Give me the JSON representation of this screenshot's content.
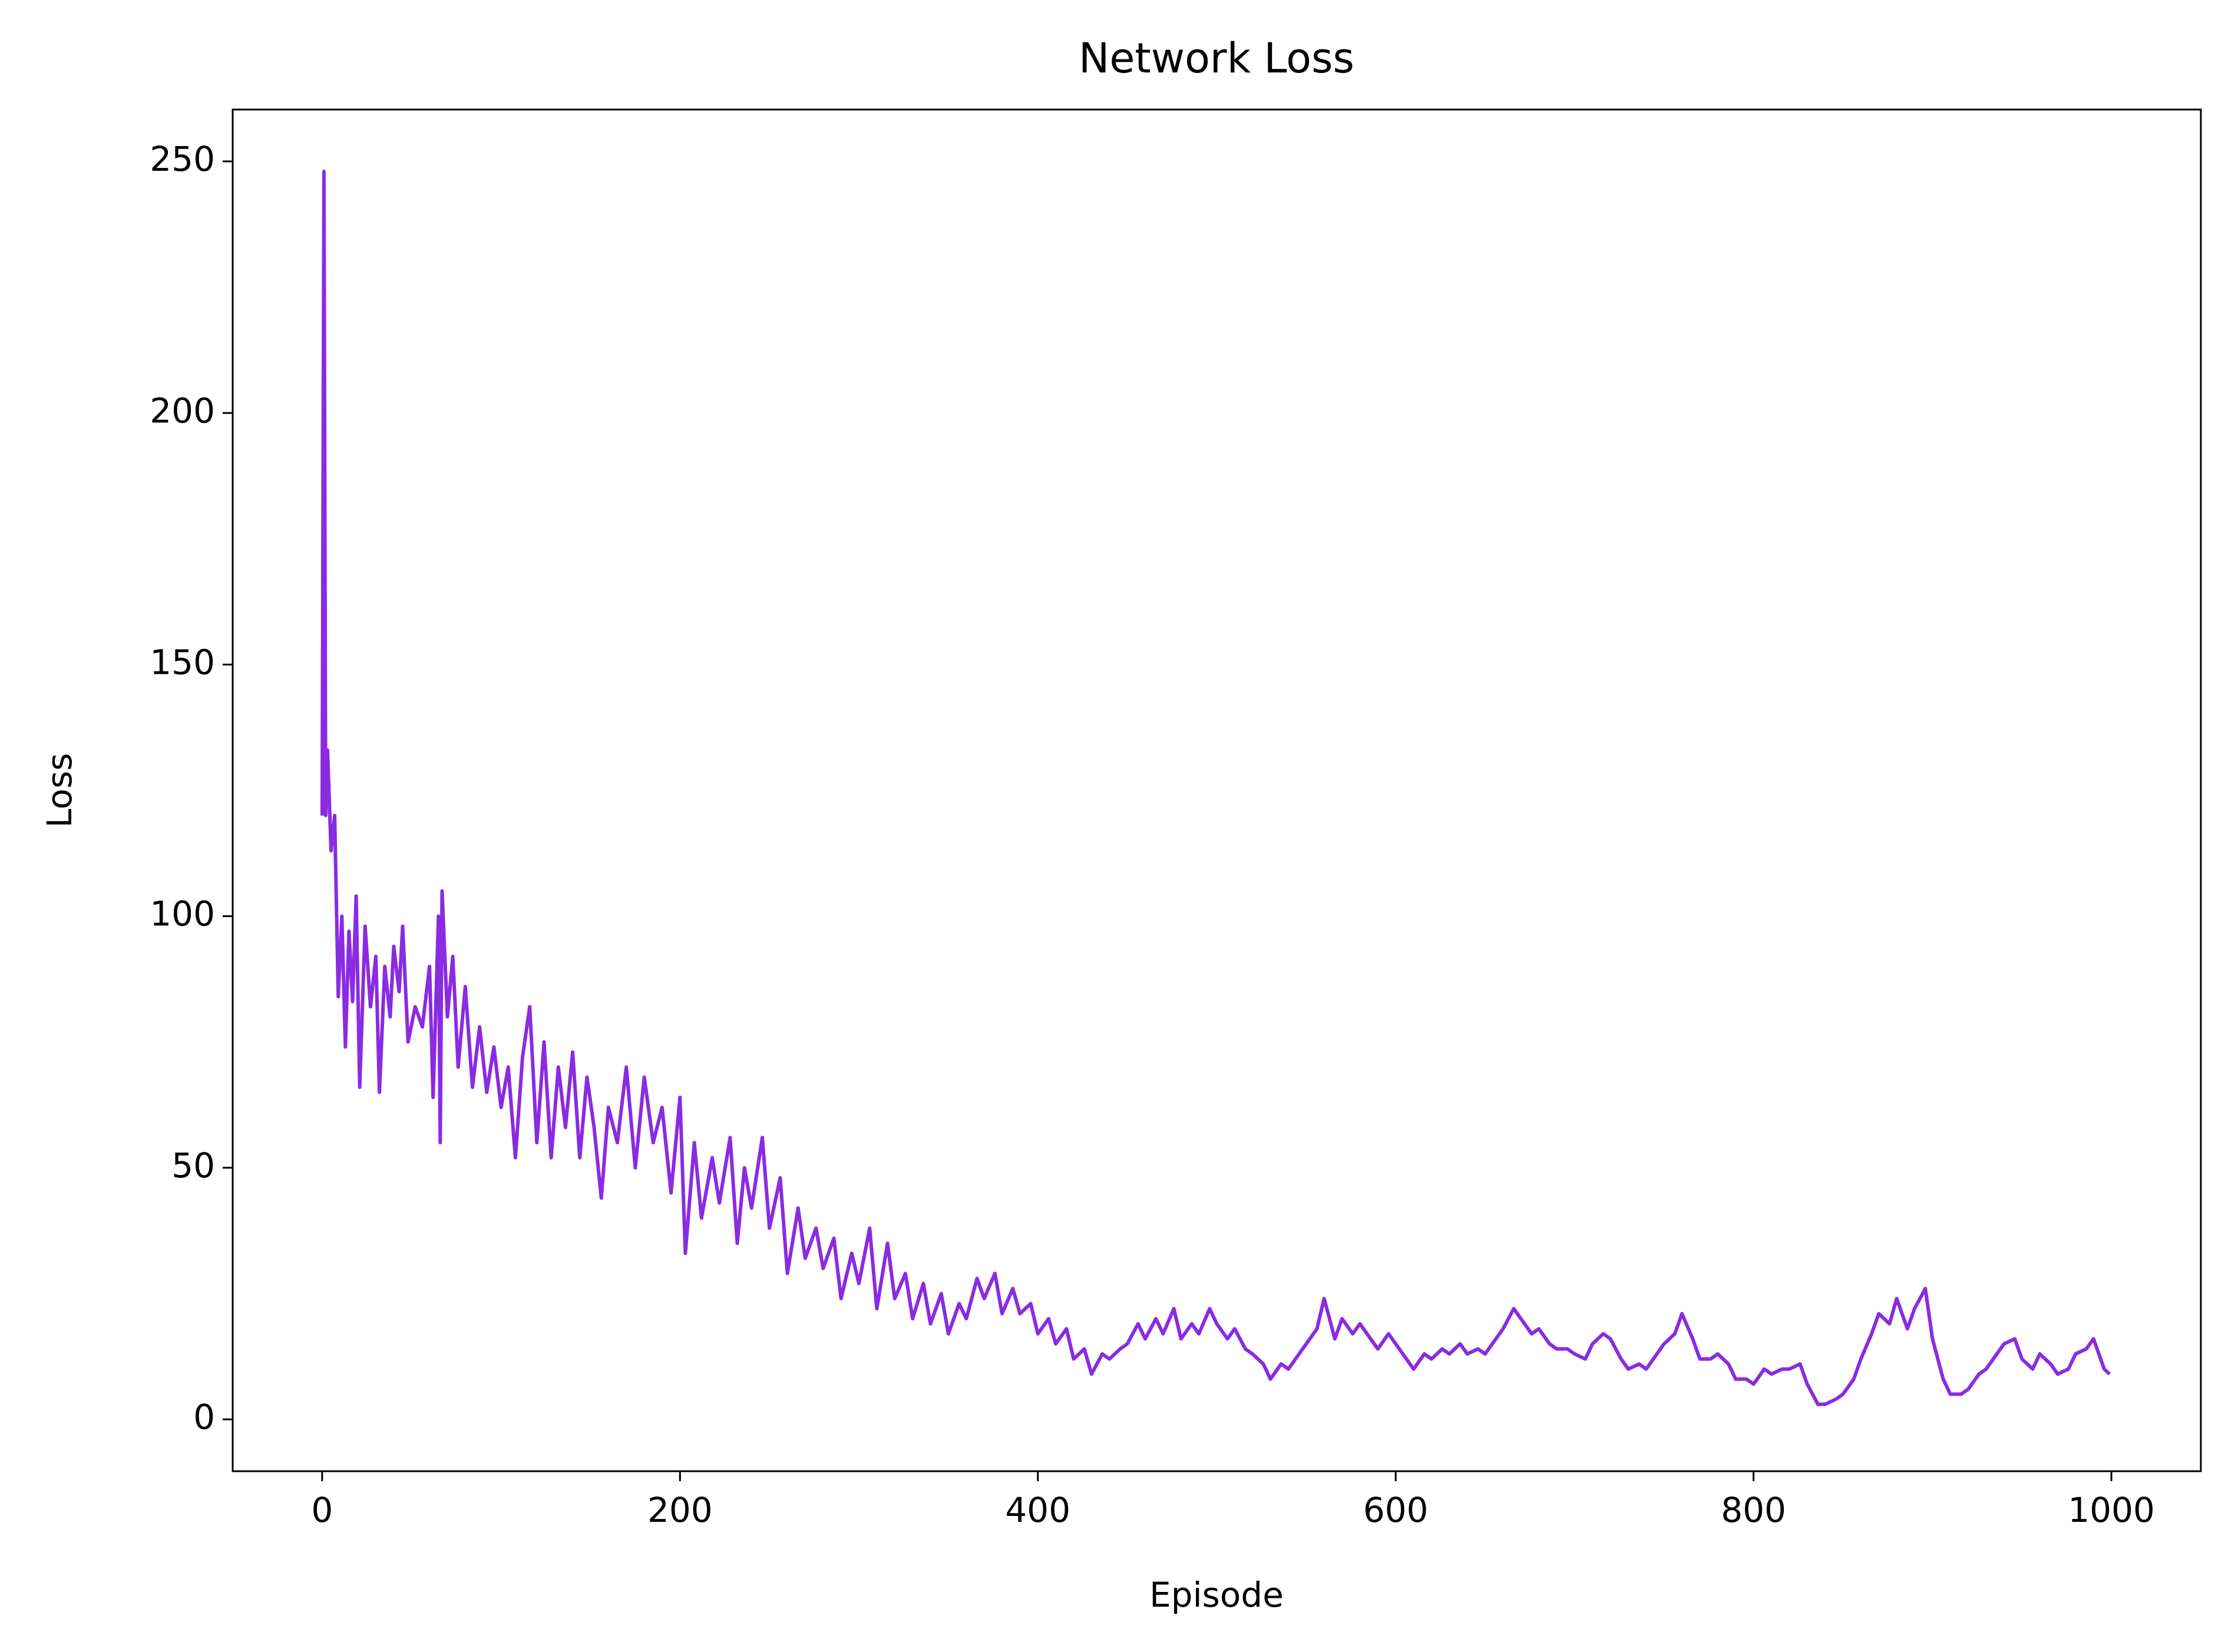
{
  "chart_data": {
    "type": "line",
    "title": "Network Loss",
    "xlabel": "Episode",
    "ylabel": "Loss",
    "x": [
      0,
      1,
      2,
      3,
      5,
      7,
      9,
      11,
      13,
      15,
      17,
      19,
      21,
      24,
      27,
      30,
      32,
      35,
      38,
      40,
      43,
      45,
      48,
      52,
      56,
      60,
      62,
      65,
      66,
      67,
      70,
      73,
      76,
      80,
      84,
      88,
      92,
      96,
      100,
      104,
      108,
      112,
      116,
      120,
      124,
      128,
      132,
      136,
      140,
      144,
      148,
      152,
      156,
      160,
      165,
      170,
      175,
      180,
      185,
      190,
      195,
      200,
      203,
      208,
      212,
      218,
      222,
      228,
      232,
      236,
      240,
      246,
      250,
      256,
      260,
      266,
      270,
      276,
      280,
      286,
      290,
      296,
      300,
      306,
      310,
      316,
      320,
      326,
      330,
      336,
      340,
      346,
      350,
      356,
      360,
      366,
      370,
      376,
      380,
      386,
      390,
      396,
      400,
      406,
      410,
      416,
      420,
      426,
      430,
      436,
      440,
      446,
      450,
      456,
      460,
      466,
      470,
      476,
      480,
      486,
      490,
      496,
      500,
      506,
      510,
      516,
      520,
      526,
      530,
      536,
      540,
      546,
      550,
      556,
      560,
      566,
      570,
      576,
      580,
      586,
      590,
      596,
      600,
      606,
      610,
      616,
      620,
      626,
      630,
      636,
      640,
      646,
      650,
      656,
      660,
      666,
      670,
      676,
      680,
      686,
      690,
      696,
      700,
      706,
      710,
      716,
      720,
      726,
      730,
      736,
      740,
      746,
      750,
      756,
      760,
      766,
      770,
      776,
      780,
      786,
      790,
      796,
      800,
      806,
      810,
      816,
      820,
      826,
      830,
      836,
      840,
      846,
      850,
      856,
      860,
      866,
      870,
      876,
      880,
      886,
      890,
      896,
      900,
      906,
      910,
      916,
      920,
      926,
      930,
      936,
      940,
      946,
      950,
      956,
      960,
      966,
      970,
      976,
      980,
      986,
      990,
      996,
      999
    ],
    "series": [
      {
        "name": "Loss",
        "color": "#8a2be2",
        "values": [
          120,
          248,
          120,
          133,
          113,
          120,
          84,
          100,
          74,
          97,
          83,
          104,
          66,
          98,
          82,
          92,
          65,
          90,
          80,
          94,
          85,
          98,
          75,
          82,
          78,
          90,
          64,
          100,
          55,
          105,
          80,
          92,
          70,
          86,
          66,
          78,
          65,
          74,
          62,
          70,
          52,
          72,
          82,
          55,
          75,
          52,
          70,
          58,
          73,
          52,
          68,
          58,
          44,
          62,
          55,
          70,
          50,
          68,
          55,
          62,
          45,
          64,
          33,
          55,
          40,
          52,
          43,
          56,
          35,
          50,
          42,
          56,
          38,
          48,
          29,
          42,
          32,
          38,
          30,
          36,
          24,
          33,
          27,
          38,
          22,
          35,
          24,
          29,
          20,
          27,
          19,
          25,
          17,
          23,
          20,
          28,
          24,
          29,
          21,
          26,
          21,
          23,
          17,
          20,
          15,
          18,
          12,
          14,
          9,
          13,
          12,
          14,
          15,
          19,
          16,
          20,
          17,
          22,
          16,
          19,
          17,
          22,
          19,
          16,
          18,
          14,
          13,
          11,
          8,
          11,
          10,
          13,
          15,
          18,
          24,
          16,
          20,
          17,
          19,
          16,
          14,
          17,
          15,
          12,
          10,
          13,
          12,
          14,
          13,
          15,
          13,
          14,
          13,
          16,
          18,
          22,
          20,
          17,
          18,
          15,
          14,
          14,
          13,
          12,
          15,
          17,
          16,
          12,
          10,
          11,
          10,
          13,
          15,
          17,
          21,
          16,
          12,
          12,
          13,
          11,
          8,
          8,
          7,
          10,
          9,
          10,
          10,
          11,
          7,
          3,
          3,
          4,
          5,
          8,
          12,
          17,
          21,
          19,
          24,
          18,
          22,
          26,
          16,
          8,
          5,
          5,
          6,
          9,
          10,
          13,
          15,
          16,
          12,
          10,
          13,
          11,
          9,
          10,
          13,
          14,
          16,
          10,
          9
        ]
      }
    ],
    "xlim": [
      -50,
      1050
    ],
    "ylim": [
      -10.3,
      260.3
    ],
    "xticks": [
      0,
      200,
      400,
      600,
      800,
      1000
    ],
    "yticks": [
      0,
      50,
      100,
      150,
      200,
      250
    ]
  }
}
